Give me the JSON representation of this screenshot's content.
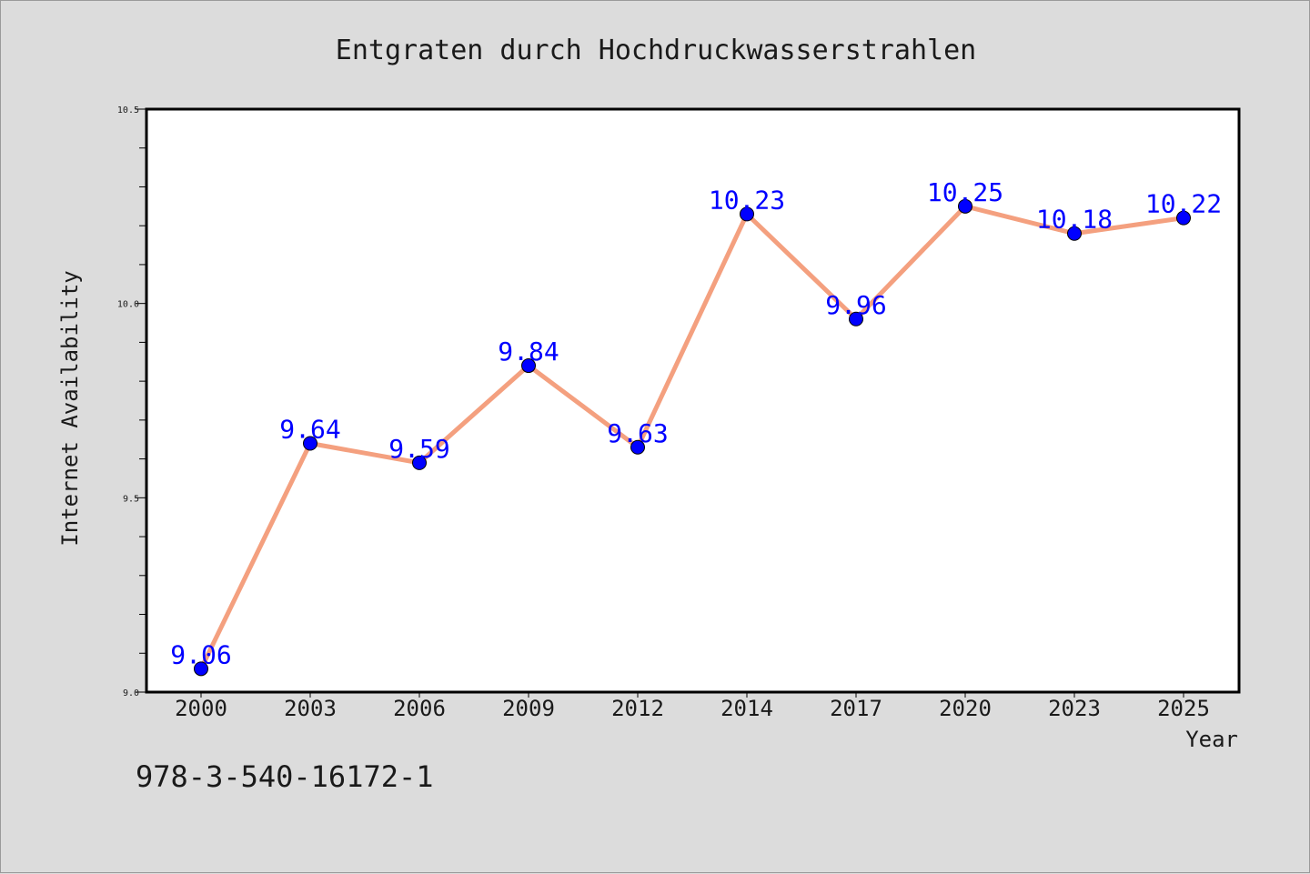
{
  "chart_data": {
    "type": "line",
    "title": "Entgraten durch Hochdruckwasserstrahlen",
    "xlabel": "Year",
    "ylabel": "Internet Availability",
    "categories": [
      "2000",
      "2003",
      "2006",
      "2009",
      "2012",
      "2014",
      "2017",
      "2020",
      "2023",
      "2025"
    ],
    "series": [
      {
        "values": [
          9.06,
          9.64,
          9.59,
          9.84,
          9.63,
          10.23,
          9.96,
          10.25,
          10.18,
          10.22
        ],
        "labels": [
          "9.06",
          "9.64",
          "9.59",
          "9.84",
          "9.63",
          "10.23",
          "9.96",
          "10.25",
          "10.18",
          "10.22"
        ],
        "line_color": "#f4a07f",
        "marker_color": "#0000ff"
      }
    ],
    "ylim": [
      9.0,
      10.5
    ],
    "yticks": [
      "9.0",
      "9.5",
      "10.0",
      "10.5"
    ],
    "grid": false,
    "legend": "none"
  },
  "footer": {
    "text": "978-3-540-16172-1"
  },
  "colors": {
    "background": "#dcdcdc",
    "plot_background": "#ffffff",
    "line": "#f4a07f",
    "marker": "#0000ff",
    "data_label": "#0000ff"
  }
}
